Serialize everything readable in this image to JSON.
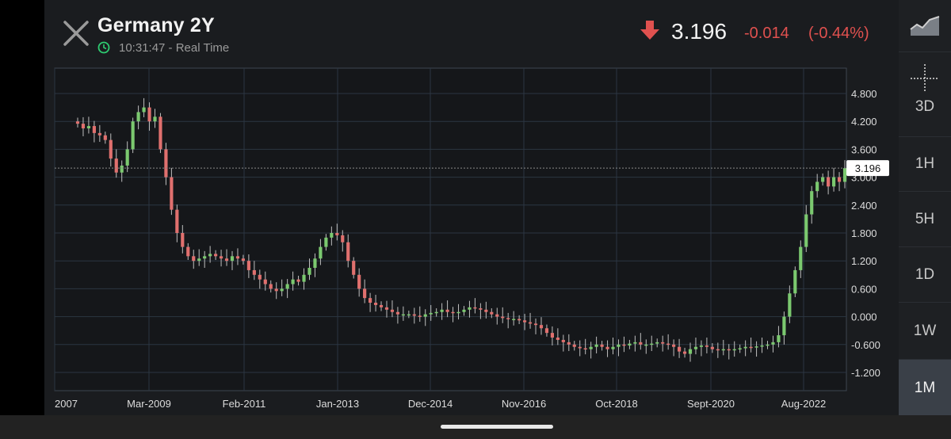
{
  "header": {
    "title": "Germany 2Y",
    "time": "10:31:47 - Real Time",
    "price": "3.196",
    "change": "-0.014",
    "change_pct": "(-0.44%)",
    "direction_icon": "arrow-down-icon",
    "down_color": "#e0514f"
  },
  "side_toolbar": {
    "items": [
      {
        "label": "",
        "icon": "area-chart-icon"
      },
      {
        "label": "3D",
        "icon": "crosshair-icon"
      },
      {
        "label": "1H"
      },
      {
        "label": "5H"
      },
      {
        "label": "1D"
      },
      {
        "label": "1W"
      },
      {
        "label": "1M"
      }
    ],
    "active": "1M"
  },
  "chart_data": {
    "type": "candlestick",
    "title": "Germany 2Y",
    "y_ticks": [
      "4.800",
      "4.200",
      "3.600",
      "3.000",
      "2.400",
      "1.800",
      "1.200",
      "0.600",
      "0.000",
      "-0.600",
      "-1.200"
    ],
    "x_ticks": [
      "2007",
      "Mar-2009",
      "Feb-2011",
      "Jan-2013",
      "Dec-2014",
      "Nov-2016",
      "Oct-2018",
      "Sept-2020",
      "Aug-2022"
    ],
    "last_price_label": "3.196",
    "ylim": [
      -1.5,
      5.3
    ],
    "grid": true,
    "up_color": "#7bc96f",
    "down_color": "#e0706e",
    "series": [
      {
        "name": "",
        "close": [
          4.15,
          4.05,
          4.1,
          3.95,
          3.9,
          3.8,
          3.4,
          3.1,
          3.25,
          3.6,
          4.2,
          4.4,
          4.5,
          4.2,
          4.3,
          3.6,
          3.0,
          2.3,
          1.8,
          1.5,
          1.3,
          1.2,
          1.25,
          1.3,
          1.35,
          1.3,
          1.25,
          1.2,
          1.3,
          1.25,
          1.2,
          1.0,
          0.9,
          0.8,
          0.7,
          0.6,
          0.55,
          0.6,
          0.7,
          0.8,
          0.75,
          0.9,
          1.05,
          1.25,
          1.5,
          1.7,
          1.8,
          1.75,
          1.6,
          1.2,
          0.9,
          0.6,
          0.4,
          0.3,
          0.25,
          0.2,
          0.15,
          0.1,
          0.05,
          0.05,
          0.05,
          0.02,
          0.0,
          0.05,
          0.08,
          0.1,
          0.15,
          0.1,
          0.08,
          0.1,
          0.15,
          0.2,
          0.18,
          0.15,
          0.1,
          0.05,
          0.0,
          -0.03,
          -0.05,
          -0.05,
          -0.08,
          -0.12,
          -0.15,
          -0.18,
          -0.25,
          -0.35,
          -0.45,
          -0.5,
          -0.55,
          -0.6,
          -0.65,
          -0.68,
          -0.7,
          -0.65,
          -0.6,
          -0.65,
          -0.7,
          -0.65,
          -0.6,
          -0.62,
          -0.58,
          -0.55,
          -0.6,
          -0.6,
          -0.58,
          -0.55,
          -0.58,
          -0.6,
          -0.65,
          -0.75,
          -0.8,
          -0.7,
          -0.65,
          -0.62,
          -0.65,
          -0.7,
          -0.72,
          -0.7,
          -0.72,
          -0.7,
          -0.68,
          -0.65,
          -0.66,
          -0.64,
          -0.62,
          -0.6,
          -0.55,
          -0.4,
          0.0,
          0.5,
          1.0,
          1.5,
          2.2,
          2.7,
          2.9,
          3.0,
          2.8,
          3.0,
          2.9,
          3.196
        ]
      }
    ]
  }
}
